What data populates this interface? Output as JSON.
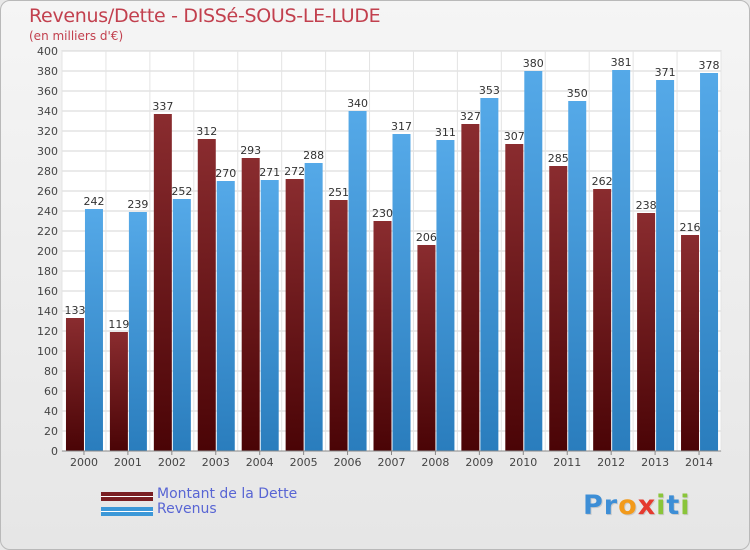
{
  "chart_data": {
    "type": "bar",
    "title": "Revenus/Dette - DISSé-SOUS-LE-LUDE",
    "subtitle": "(en milliers d'€)",
    "categories": [
      "2000",
      "2001",
      "2002",
      "2003",
      "2004",
      "2005",
      "2006",
      "2007",
      "2008",
      "2009",
      "2010",
      "2011",
      "2012",
      "2013",
      "2014"
    ],
    "series": [
      {
        "name": "Montant de la Dette",
        "color": "#7a1e22",
        "values": [
          133,
          119,
          337,
          312,
          293,
          272,
          251,
          230,
          206,
          327,
          307,
          285,
          262,
          238,
          216
        ]
      },
      {
        "name": "Revenus",
        "color": "#3c98d8",
        "values": [
          242,
          239,
          252,
          270,
          271,
          288,
          340,
          317,
          311,
          353,
          380,
          350,
          381,
          371,
          378
        ]
      }
    ],
    "ylim": [
      0,
      400
    ],
    "ytick_step": 20,
    "grid": true,
    "legend_position": "bottom-left"
  },
  "logo": {
    "letters": [
      {
        "char": "P",
        "color": "#3d8ed6"
      },
      {
        "char": "r",
        "color": "#3d8ed6"
      },
      {
        "char": "o",
        "color": "#f29a1b"
      },
      {
        "char": "x",
        "color": "#e53a2f"
      },
      {
        "char": "i",
        "color": "#8ac53a"
      },
      {
        "char": "t",
        "color": "#3d8ed6"
      },
      {
        "char": "i",
        "color": "#8ac53a"
      }
    ]
  }
}
